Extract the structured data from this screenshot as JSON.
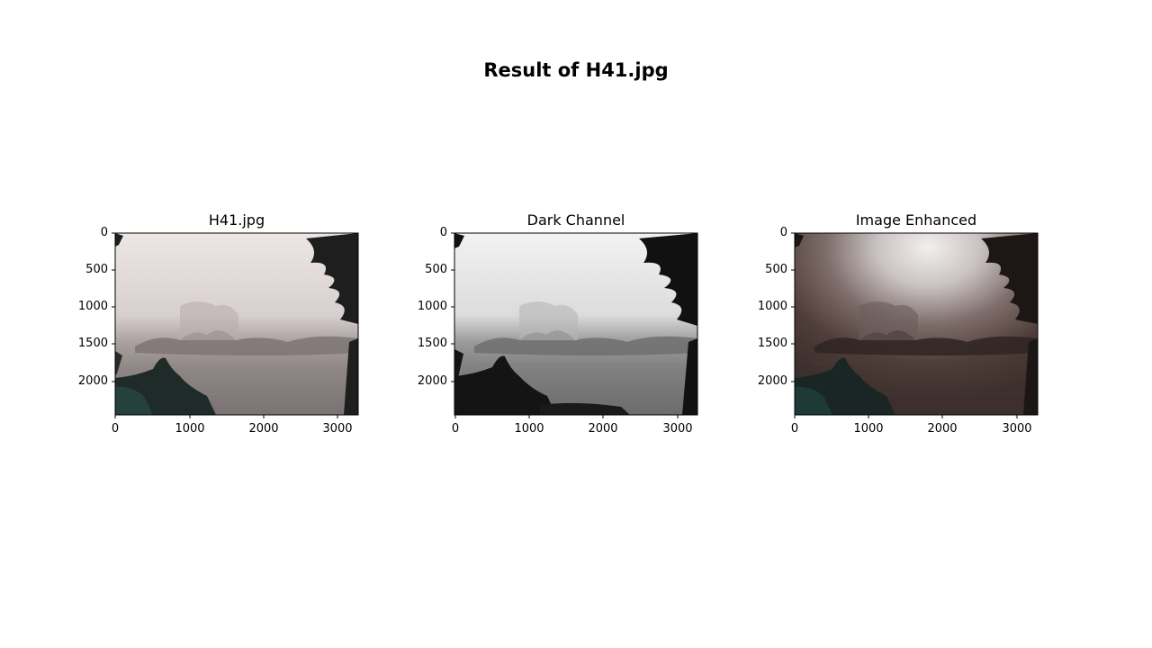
{
  "figure": {
    "title": "Result of H41.jpg"
  },
  "panels": [
    {
      "title": "H41.jpg",
      "kind": "original",
      "yticks": [
        "0",
        "500",
        "1000",
        "1500",
        "2000"
      ],
      "xticks": [
        "0",
        "1000",
        "2000",
        "3000"
      ],
      "xlim": [
        0,
        3264
      ],
      "ylim": [
        2448,
        0
      ]
    },
    {
      "title": "Dark Channel",
      "kind": "dark",
      "yticks": [
        "0",
        "500",
        "1000",
        "1500",
        "2000"
      ],
      "xticks": [
        "0",
        "1000",
        "2000",
        "3000"
      ],
      "xlim": [
        0,
        3264
      ],
      "ylim": [
        2448,
        0
      ]
    },
    {
      "title": "Image Enhanced",
      "kind": "enhanced",
      "yticks": [
        "0",
        "500",
        "1000",
        "1500",
        "2000"
      ],
      "xticks": [
        "0",
        "1000",
        "2000",
        "3000"
      ],
      "xlim": [
        0,
        3264
      ],
      "ylim": [
        2448,
        0
      ]
    }
  ]
}
